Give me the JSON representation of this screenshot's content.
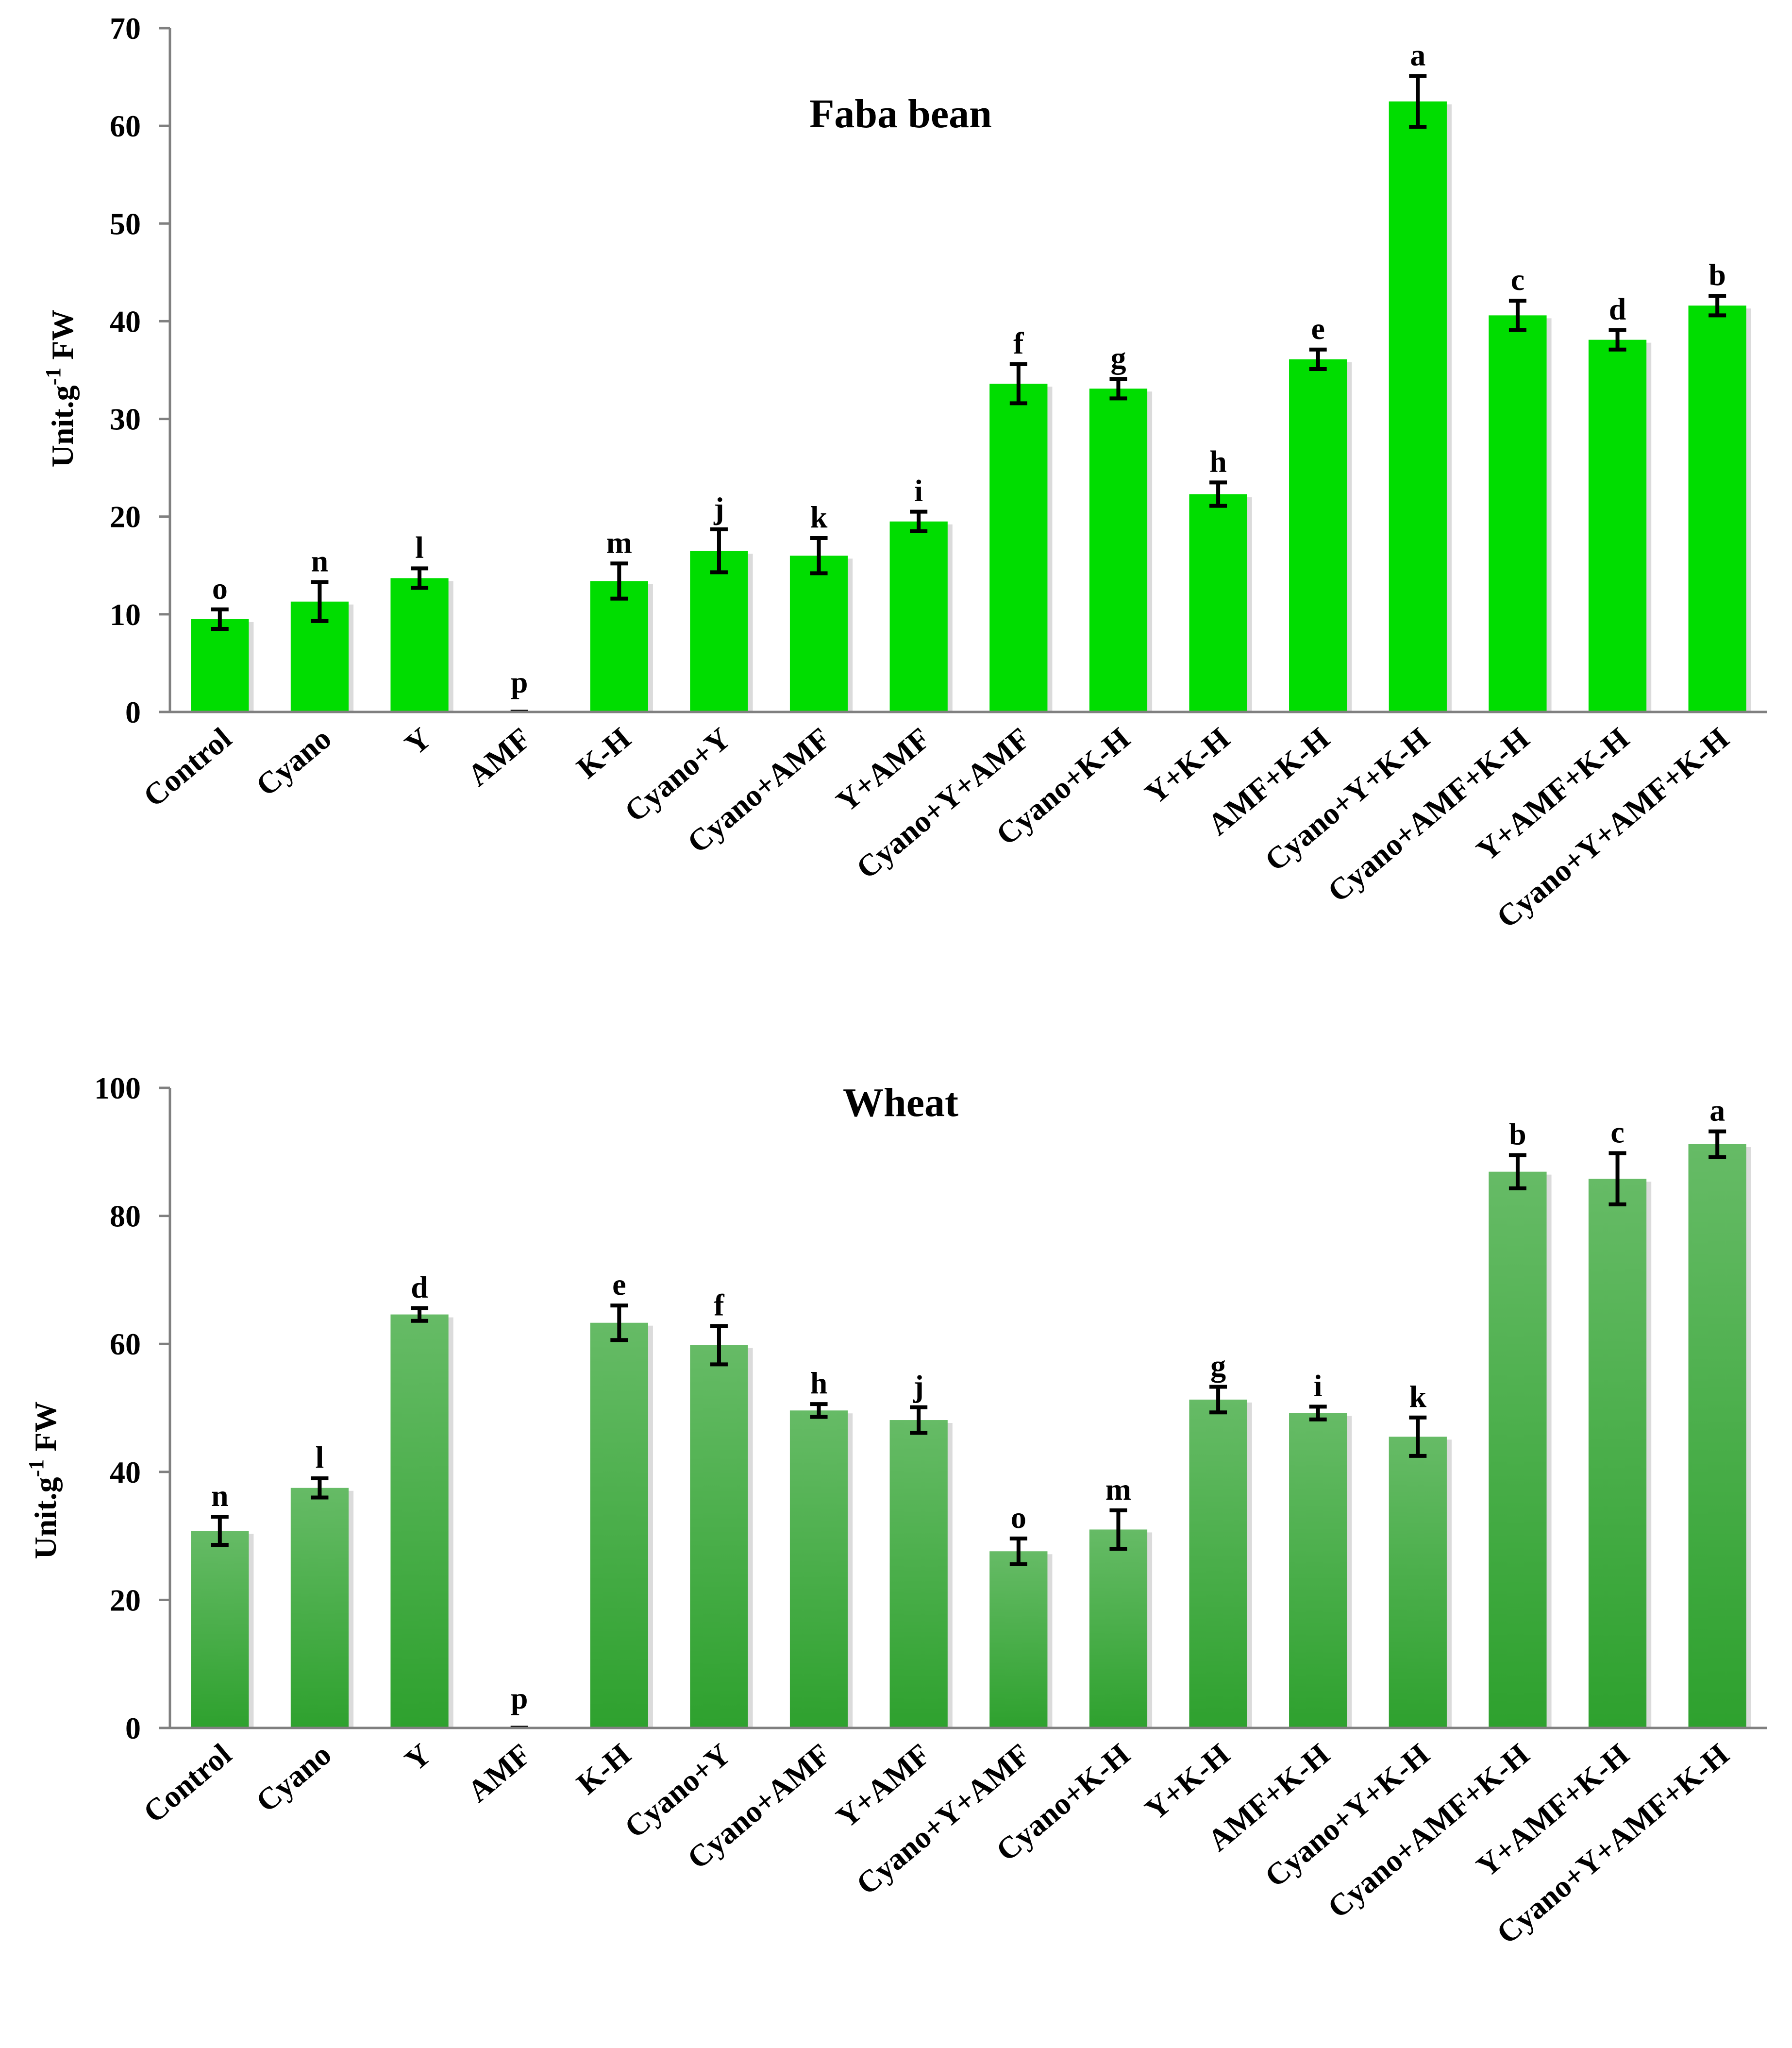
{
  "colors": {
    "faba_bar": "#00dd00",
    "wheat_bar_top": "#66bb66",
    "wheat_bar_bottom": "#2ea12e",
    "axis": "#808080",
    "text": "#000000"
  },
  "chart_data": [
    {
      "id": "faba",
      "type": "bar",
      "title": "Faba bean",
      "ylabel_main": "Unit.g",
      "ylabel_sup": "-1",
      "ylabel_unit": " FW",
      "xlabel": "",
      "ylim": [
        0,
        70
      ],
      "yticks": [
        0,
        10,
        20,
        30,
        40,
        50,
        60,
        70
      ],
      "categories": [
        "Control",
        "Cyano",
        "Y",
        "AMF",
        "K-H",
        "Cyano+Y",
        "Cyano+AMF",
        "Y+AMF",
        "Cyano+Y+AMF",
        "Cyano+K-H",
        "Y+K-H",
        "AMF+K-H",
        "Cyano+Y+K-H",
        "Cyano+AMF+K-H",
        "Y+AMF+K-H",
        "Cyano+Y+AMF+K-H"
      ],
      "values": [
        9.5,
        11.3,
        13.7,
        0,
        13.4,
        16.5,
        16.0,
        19.5,
        33.6,
        33.1,
        22.3,
        36.1,
        62.5,
        40.6,
        38.1,
        41.6
      ],
      "errors": [
        1.0,
        2.0,
        1.0,
        0,
        1.8,
        2.2,
        1.8,
        1.0,
        2.0,
        1.0,
        1.2,
        1.0,
        2.6,
        1.5,
        1.0,
        1.0
      ],
      "letters": [
        "o",
        "n",
        "l",
        "p",
        "m",
        "j",
        "k",
        "i",
        "f",
        "g",
        "h",
        "e",
        "a",
        "c",
        "d",
        "b"
      ]
    },
    {
      "id": "wheat",
      "type": "bar",
      "title": "Wheat",
      "ylabel_main": "Unit.g",
      "ylabel_sup": "-1",
      "ylabel_unit": " FW",
      "xlabel": "",
      "ylim": [
        0,
        100
      ],
      "yticks": [
        0,
        20,
        40,
        60,
        80,
        100
      ],
      "categories": [
        "Control",
        "Cyano",
        "Y",
        "AMF",
        "K-H",
        "Cyano+Y",
        "Cyano+AMF",
        "Y+AMF",
        "Cyano+Y+AMF",
        "Cyano+K-H",
        "Y+K-H",
        "AMF+K-H",
        "Cyano+Y+K-H",
        "Cyano+AMF+K-H",
        "Y+AMF+K-H",
        "Cyano+Y+AMF+K-H"
      ],
      "values": [
        30.8,
        37.5,
        64.6,
        0,
        63.3,
        59.8,
        49.6,
        48.1,
        27.6,
        31.0,
        51.3,
        49.2,
        45.5,
        86.9,
        85.8,
        91.2
      ],
      "errors": [
        2.2,
        1.5,
        1.0,
        0,
        2.7,
        3.0,
        1.0,
        2.0,
        2.0,
        3.0,
        2.0,
        1.0,
        3.0,
        2.6,
        4.0,
        2.0
      ],
      "letters": [
        "n",
        "l",
        "d",
        "p",
        "e",
        "f",
        "h",
        "j",
        "o",
        "m",
        "g",
        "i",
        "k",
        "b",
        "c",
        "a"
      ]
    }
  ]
}
